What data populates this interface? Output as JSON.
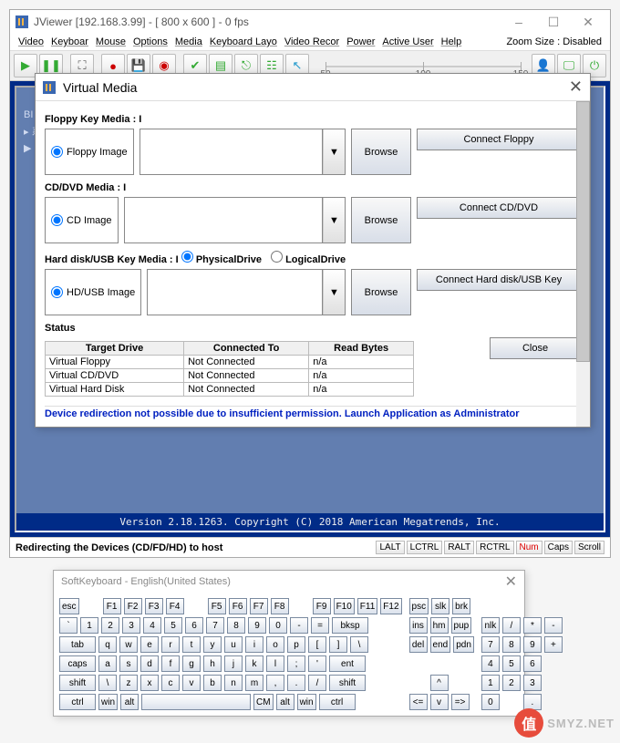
{
  "main": {
    "title": "JViewer [192.168.3.99] - [ 800 x 600 ] - 0 fps",
    "menus": [
      "Video",
      "Keyboar",
      "Mouse",
      "Options",
      "Media",
      "Keyboard Layo",
      "Video Recor",
      "Power",
      "Active User",
      "Help"
    ],
    "zoom_label": "Zoom Size :",
    "zoom_value": "Disabled",
    "slider": {
      "min": 50,
      "mid": 100,
      "max": 150
    },
    "toolbar_icons": [
      "play",
      "pause",
      "fullscreen",
      "record",
      "save",
      "cd",
      "ok",
      "hdd",
      "usb",
      "net",
      "cursor"
    ],
    "right_icons": [
      "user",
      "monitor",
      "power"
    ],
    "status_msg": "Redirecting the Devices (CD/FD/HD) to host",
    "indicators": [
      "LALT",
      "LCTRL",
      "RALT",
      "RCTRL",
      "Num",
      "Caps",
      "Scroll"
    ],
    "active_indicator": "Num",
    "bios_sidebar": [
      "BI",
      " ",
      "▸ 系",
      "▶ BI"
    ],
    "bios_footer": "Version 2.18.1263. Copyright (C) 2018 American Megatrends, Inc."
  },
  "vm": {
    "title": "Virtual Media",
    "floppy_label": "Floppy Key Media :  I",
    "floppy_radio": "Floppy Image",
    "cd_label": "CD/DVD Media :  I",
    "cd_radio": "CD Image",
    "hd_label": "Hard disk/USB Key Media :  I",
    "hd_phys": "PhysicalDrive",
    "hd_logi": "LogicalDrive",
    "hd_radio": "HD/USB Image",
    "browse": "Browse",
    "connect_floppy": "Connect Floppy",
    "connect_cd": "Connect CD/DVD",
    "connect_hd": "Connect Hard disk/USB Key",
    "status_label": "Status",
    "cols": [
      "Target Drive",
      "Connected To",
      "Read Bytes"
    ],
    "rows": [
      [
        "Virtual Floppy",
        "Not Connected",
        "n/a"
      ],
      [
        "Virtual CD/DVD",
        "Not Connected",
        "n/a"
      ],
      [
        "Virtual Hard Disk",
        "Not Connected",
        "n/a"
      ]
    ],
    "close": "Close",
    "perm_msg": "Device redirection not possible due to insufficient permission. Launch Application as Administrator"
  },
  "skb": {
    "title": "SoftKeyboard - English(United States)",
    "rows_main": [
      [
        "esc",
        "",
        "F1",
        "F2",
        "F3",
        "F4",
        "",
        "F5",
        "F6",
        "F7",
        "F8",
        "",
        "F9",
        "F10",
        "F11",
        "F12"
      ],
      [
        "`",
        "1",
        "2",
        "3",
        "4",
        "5",
        "6",
        "7",
        "8",
        "9",
        "0",
        "-",
        "=",
        "bksp"
      ],
      [
        "tab",
        "q",
        "w",
        "e",
        "r",
        "t",
        "y",
        "u",
        "i",
        "o",
        "p",
        "[",
        "]",
        "\\"
      ],
      [
        "caps",
        "a",
        "s",
        "d",
        "f",
        "g",
        "h",
        "j",
        "k",
        "l",
        ";",
        "'",
        "ent"
      ],
      [
        "shift",
        "\\",
        "z",
        "x",
        "c",
        "v",
        "b",
        "n",
        "m",
        ",",
        ".",
        "/",
        "shift"
      ],
      [
        "ctrl",
        "win",
        "alt",
        "",
        "CM",
        "alt",
        "win",
        "ctrl"
      ]
    ],
    "rows_nav": [
      [
        "psc",
        "slk",
        "brk"
      ],
      [
        "ins",
        "hm",
        "pup"
      ],
      [
        "del",
        "end",
        "pdn"
      ],
      [],
      [
        "",
        "^",
        ""
      ],
      [
        "<=",
        "v",
        "=>"
      ]
    ],
    "rows_num": [
      [],
      [
        "nlk",
        "/",
        "*",
        "-"
      ],
      [
        "7",
        "8",
        "9",
        "+"
      ],
      [
        "4",
        "5",
        "6",
        ""
      ],
      [
        "1",
        "2",
        "3",
        ""
      ],
      [
        "0",
        "",
        ".",
        ""
      ]
    ]
  },
  "watermark": {
    "char": "值",
    "text": "SMYZ.NET"
  },
  "colors": {
    "accent": "#002b87",
    "btn": "#d8dee8"
  }
}
